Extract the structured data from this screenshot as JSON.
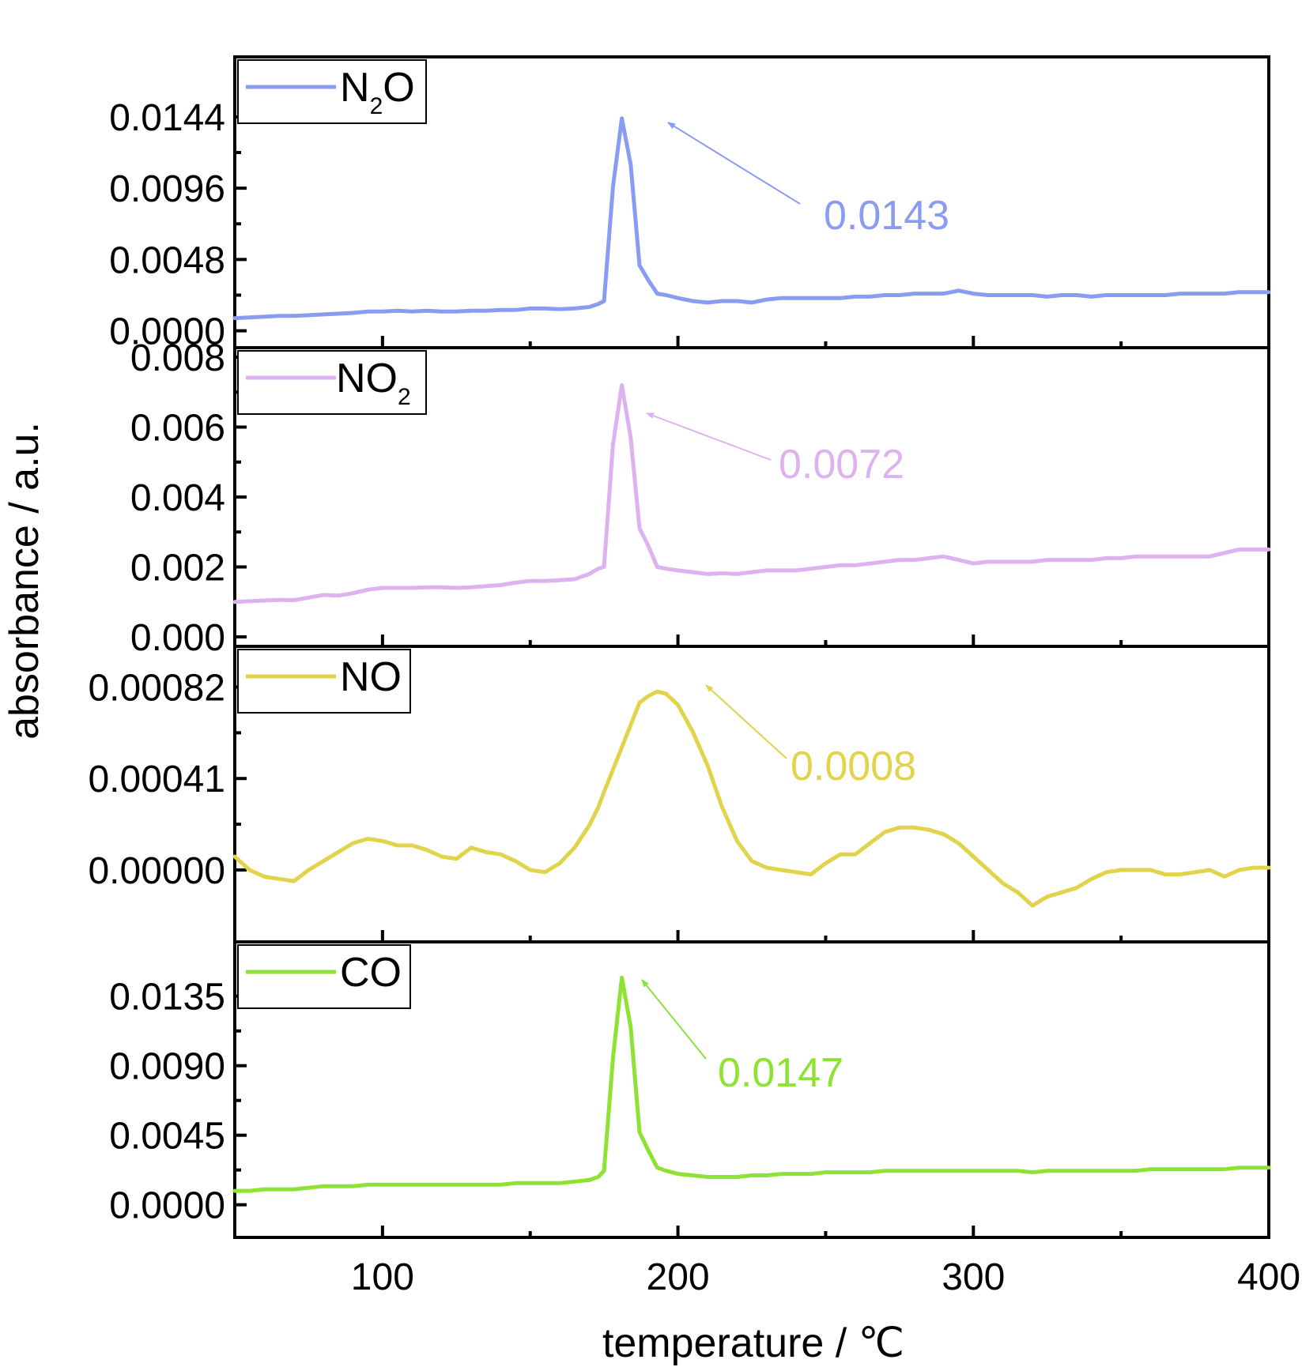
{
  "chart_data": {
    "type": "line",
    "xlabel": "temperature / ℃",
    "ylabel": "absorbance / a.u.",
    "xlim": [
      50,
      400
    ],
    "xticks": [
      100,
      200,
      300,
      400
    ],
    "xtick_labels": [
      "100",
      "200",
      "300",
      "400"
    ],
    "grid": false,
    "x": [
      50,
      55,
      60,
      65,
      70,
      75,
      80,
      85,
      90,
      95,
      100,
      105,
      110,
      115,
      120,
      125,
      130,
      135,
      140,
      145,
      150,
      155,
      160,
      165,
      170,
      173,
      175,
      178,
      181,
      184,
      187,
      190,
      193,
      196,
      200,
      205,
      210,
      215,
      220,
      225,
      230,
      235,
      240,
      245,
      250,
      255,
      260,
      265,
      270,
      275,
      280,
      285,
      290,
      295,
      300,
      305,
      310,
      315,
      320,
      325,
      330,
      335,
      340,
      345,
      350,
      355,
      360,
      365,
      370,
      375,
      380,
      385,
      390,
      395,
      400
    ],
    "panels": [
      {
        "name": "N₂O",
        "legend_main": "N",
        "legend_sub": "2",
        "legend_tail": "O",
        "color": "#8a9bf2",
        "ylim": [
          -0.0005,
          0.0178
        ],
        "yticks": [
          0.0,
          0.0048,
          0.0096,
          0.0144
        ],
        "ytick_labels": [
          "0.0000",
          "0.0048",
          "0.0096",
          "0.0144"
        ],
        "annotation": "0.0143",
        "values": [
          0.00085,
          0.0009,
          0.00095,
          0.001,
          0.001,
          0.00105,
          0.0011,
          0.00115,
          0.0012,
          0.0013,
          0.0013,
          0.00135,
          0.0013,
          0.00135,
          0.0013,
          0.0013,
          0.00135,
          0.00135,
          0.0014,
          0.0014,
          0.0015,
          0.0015,
          0.00145,
          0.0015,
          0.0016,
          0.0018,
          0.002,
          0.0097,
          0.0143,
          0.0112,
          0.0044,
          0.0034,
          0.0025,
          0.0024,
          0.0022,
          0.002,
          0.0019,
          0.002,
          0.002,
          0.0019,
          0.0021,
          0.0022,
          0.0022,
          0.0022,
          0.0022,
          0.0022,
          0.0023,
          0.0023,
          0.0024,
          0.0024,
          0.0025,
          0.0025,
          0.0025,
          0.0027,
          0.0025,
          0.0024,
          0.0024,
          0.0024,
          0.0024,
          0.0023,
          0.0024,
          0.0024,
          0.0023,
          0.0024,
          0.0024,
          0.0024,
          0.0024,
          0.0024,
          0.0025,
          0.0025,
          0.0025,
          0.0025,
          0.0026,
          0.0026,
          0.0026
        ]
      },
      {
        "name": "NO₂",
        "legend_main": "NO",
        "legend_sub": "2",
        "legend_tail": "",
        "color": "#ddb2f0",
        "ylim": [
          0.0,
          0.008
        ],
        "yticks": [
          0.0,
          0.002,
          0.004,
          0.006,
          0.008
        ],
        "ytick_labels": [
          "0.000",
          "0.002",
          "0.004",
          "0.006",
          "0.008"
        ],
        "annotation": "0.0072",
        "values": [
          0.001,
          0.00102,
          0.00104,
          0.00106,
          0.00105,
          0.00112,
          0.0012,
          0.00118,
          0.00125,
          0.00135,
          0.0014,
          0.0014,
          0.0014,
          0.00142,
          0.00142,
          0.0014,
          0.00142,
          0.00145,
          0.00148,
          0.00155,
          0.0016,
          0.0016,
          0.00162,
          0.00165,
          0.0018,
          0.00195,
          0.002,
          0.0055,
          0.0072,
          0.0057,
          0.0031,
          0.0026,
          0.002,
          0.00195,
          0.0019,
          0.00185,
          0.0018,
          0.00182,
          0.0018,
          0.00185,
          0.0019,
          0.0019,
          0.0019,
          0.00195,
          0.002,
          0.00205,
          0.00205,
          0.0021,
          0.00215,
          0.0022,
          0.0022,
          0.00225,
          0.0023,
          0.0022,
          0.0021,
          0.00215,
          0.00215,
          0.00215,
          0.00215,
          0.0022,
          0.0022,
          0.0022,
          0.0022,
          0.00225,
          0.00225,
          0.0023,
          0.0023,
          0.0023,
          0.0023,
          0.0023,
          0.0023,
          0.0024,
          0.0025,
          0.0025,
          0.0025
        ]
      },
      {
        "name": "NO",
        "legend_main": "NO",
        "legend_sub": "",
        "legend_tail": "",
        "color": "#e1d34a",
        "ylim": [
          -0.00028,
          0.00096
        ],
        "yticks": [
          0.0,
          0.00041,
          0.00082
        ],
        "ytick_labels": [
          "0.00000",
          "0.00041",
          "0.00082"
        ],
        "annotation": "0.0008",
        "values": [
          6e-05,
          0.0,
          -3e-05,
          -4e-05,
          -5e-05,
          0.0,
          4e-05,
          8e-05,
          0.00012,
          0.00014,
          0.00013,
          0.00011,
          0.00011,
          9e-05,
          6e-05,
          5e-05,
          0.0001,
          8e-05,
          7e-05,
          4e-05,
          0.0,
          -1e-05,
          3e-05,
          0.0001,
          0.0002,
          0.00028,
          0.00035,
          0.00045,
          0.00055,
          0.00065,
          0.00075,
          0.00078,
          0.0008,
          0.00079,
          0.00074,
          0.00062,
          0.00047,
          0.00028,
          0.00013,
          4e-05,
          1e-05,
          0.0,
          -1e-05,
          -2e-05,
          3e-05,
          7e-05,
          7e-05,
          0.00012,
          0.00017,
          0.00019,
          0.00019,
          0.00018,
          0.00016,
          0.00012,
          6e-05,
          0.0,
          -6e-05,
          -0.0001,
          -0.00016,
          -0.00012,
          -0.0001,
          -8e-05,
          -4e-05,
          -1e-05,
          0.0,
          0.0,
          0.0,
          -2e-05,
          -2e-05,
          -1e-05,
          0.0,
          -3e-05,
          0.0,
          1e-05,
          1e-05
        ]
      },
      {
        "name": "CO",
        "legend_main": "CO",
        "legend_sub": "",
        "legend_tail": "",
        "color": "#8ee234",
        "ylim": [
          -0.0015,
          0.0164
        ],
        "yticks": [
          0.0,
          0.0045,
          0.009,
          0.0135
        ],
        "ytick_labels": [
          "0.0000",
          "0.0045",
          "0.0090",
          "0.0135"
        ],
        "annotation": "0.0147",
        "values": [
          0.0009,
          0.0009,
          0.001,
          0.001,
          0.001,
          0.0011,
          0.0012,
          0.0012,
          0.0012,
          0.0013,
          0.0013,
          0.0013,
          0.0013,
          0.0013,
          0.0013,
          0.0013,
          0.0013,
          0.0013,
          0.0013,
          0.0014,
          0.0014,
          0.0014,
          0.0014,
          0.0015,
          0.0016,
          0.0018,
          0.0022,
          0.0095,
          0.0147,
          0.0115,
          0.0047,
          0.0035,
          0.0024,
          0.0022,
          0.002,
          0.0019,
          0.0018,
          0.0018,
          0.0018,
          0.0019,
          0.0019,
          0.002,
          0.002,
          0.002,
          0.0021,
          0.0021,
          0.0021,
          0.0021,
          0.0022,
          0.0022,
          0.0022,
          0.0022,
          0.0022,
          0.0022,
          0.0022,
          0.0022,
          0.0022,
          0.0022,
          0.0021,
          0.0022,
          0.0022,
          0.0022,
          0.0022,
          0.0022,
          0.0022,
          0.0022,
          0.0023,
          0.0023,
          0.0023,
          0.0023,
          0.0023,
          0.0023,
          0.0024,
          0.0024,
          0.0024
        ]
      }
    ]
  }
}
